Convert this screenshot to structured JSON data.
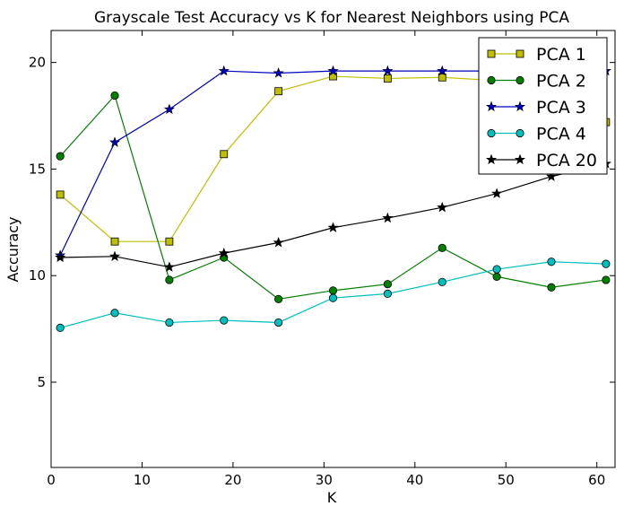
{
  "chart_data": {
    "type": "line",
    "title": "Grayscale Test Accuracy vs K for Nearest Neighbors using PCA",
    "xlabel": "K",
    "ylabel": "Accuracy",
    "xlim": [
      0,
      62
    ],
    "ylim": [
      1,
      21.5
    ],
    "xticks": [
      0,
      10,
      20,
      30,
      40,
      50,
      60
    ],
    "yticks": [
      5,
      10,
      15,
      20
    ],
    "grid": false,
    "legend_position": "top-right",
    "x": [
      1,
      7,
      13,
      19,
      25,
      31,
      37,
      43,
      49,
      55,
      61
    ],
    "series": [
      {
        "name": "PCA 1",
        "color": "#bfbf00",
        "marker": "square",
        "values": [
          13.8,
          11.6,
          11.6,
          15.7,
          18.65,
          19.35,
          19.25,
          19.3,
          19.15,
          19.1,
          17.2
        ]
      },
      {
        "name": "PCA 2",
        "color": "#008000",
        "marker": "circle",
        "values": [
          15.6,
          18.45,
          9.8,
          10.85,
          8.9,
          9.3,
          9.6,
          11.3,
          9.95,
          9.45,
          9.8
        ]
      },
      {
        "name": "PCA 3",
        "color": "#0000bf",
        "marker": "star",
        "values": [
          10.95,
          16.25,
          17.8,
          19.6,
          19.5,
          19.6,
          19.6,
          19.6,
          19.6,
          19.6,
          19.6
        ]
      },
      {
        "name": "PCA 4",
        "color": "#00bfbf",
        "marker": "circle",
        "values": [
          7.55,
          8.25,
          7.8,
          7.9,
          7.8,
          8.95,
          9.15,
          9.7,
          10.3,
          10.65,
          10.55
        ]
      },
      {
        "name": "PCA 20",
        "color": "#000000",
        "marker": "star",
        "values": [
          10.85,
          10.9,
          10.4,
          11.05,
          11.55,
          12.25,
          12.7,
          13.2,
          13.85,
          14.65,
          15.25
        ]
      }
    ]
  }
}
